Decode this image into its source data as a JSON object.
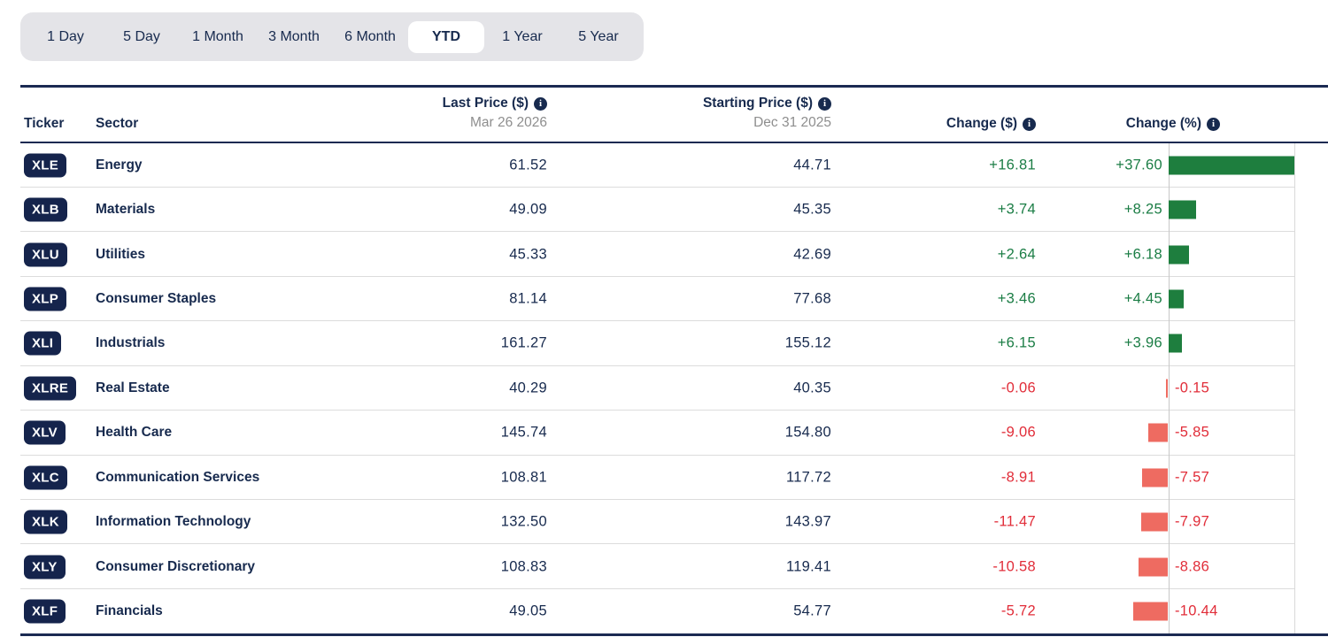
{
  "tabs": {
    "items": [
      "1 Day",
      "5 Day",
      "1 Month",
      "3 Month",
      "6 Month",
      "YTD",
      "1 Year",
      "5 Year"
    ],
    "selected": "YTD"
  },
  "table": {
    "columns": {
      "ticker": "Ticker",
      "sector": "Sector",
      "last_price": "Last Price ($)",
      "last_price_date": "Mar 26 2026",
      "starting_price": "Starting Price ($)",
      "starting_price_date": "Dec 31 2025",
      "change_dollar": "Change ($)",
      "change_percent": "Change (%)"
    },
    "icons": {
      "info_glyph": "i"
    },
    "rows": [
      {
        "ticker": "XLE",
        "sector": "Energy",
        "last": "61.52",
        "start": "44.71",
        "change_d": "+16.81",
        "change_p": "+37.60",
        "pct": 37.6
      },
      {
        "ticker": "XLB",
        "sector": "Materials",
        "last": "49.09",
        "start": "45.35",
        "change_d": "+3.74",
        "change_p": "+8.25",
        "pct": 8.25
      },
      {
        "ticker": "XLU",
        "sector": "Utilities",
        "last": "45.33",
        "start": "42.69",
        "change_d": "+2.64",
        "change_p": "+6.18",
        "pct": 6.18
      },
      {
        "ticker": "XLP",
        "sector": "Consumer Staples",
        "last": "81.14",
        "start": "77.68",
        "change_d": "+3.46",
        "change_p": "+4.45",
        "pct": 4.45
      },
      {
        "ticker": "XLI",
        "sector": "Industrials",
        "last": "161.27",
        "start": "155.12",
        "change_d": "+6.15",
        "change_p": "+3.96",
        "pct": 3.96
      },
      {
        "ticker": "XLRE",
        "sector": "Real Estate",
        "last": "40.29",
        "start": "40.35",
        "change_d": "-0.06",
        "change_p": "-0.15",
        "pct": -0.15
      },
      {
        "ticker": "XLV",
        "sector": "Health Care",
        "last": "145.74",
        "start": "154.80",
        "change_d": "-9.06",
        "change_p": "-5.85",
        "pct": -5.85
      },
      {
        "ticker": "XLC",
        "sector": "Communication Services",
        "last": "108.81",
        "start": "117.72",
        "change_d": "-8.91",
        "change_p": "-7.57",
        "pct": -7.57
      },
      {
        "ticker": "XLK",
        "sector": "Information Technology",
        "last": "132.50",
        "start": "143.97",
        "change_d": "-11.47",
        "change_p": "-7.97",
        "pct": -7.97
      },
      {
        "ticker": "XLY",
        "sector": "Consumer Discretionary",
        "last": "108.83",
        "start": "119.41",
        "change_d": "-10.58",
        "change_p": "-8.86",
        "pct": -8.86
      },
      {
        "ticker": "XLF",
        "sector": "Financials",
        "last": "49.05",
        "start": "54.77",
        "change_d": "-5.72",
        "change_p": "-10.44",
        "pct": -10.44
      }
    ]
  },
  "chart_data": {
    "type": "bar",
    "orientation": "horizontal",
    "title": "Change (%)",
    "categories": [
      "XLE",
      "XLB",
      "XLU",
      "XLP",
      "XLI",
      "XLRE",
      "XLV",
      "XLC",
      "XLK",
      "XLY",
      "XLF"
    ],
    "values": [
      37.6,
      8.25,
      6.18,
      4.45,
      3.96,
      -0.15,
      -5.85,
      -7.57,
      -7.97,
      -8.86,
      -10.44
    ],
    "xlim": [
      -10.44,
      37.6
    ],
    "grid": "zero-axis-only",
    "positive_color": "#1e7e3e",
    "negative_color": "#ee6b61",
    "positive_text_color": "#1b7d45",
    "negative_text_color": "#e12d39"
  }
}
